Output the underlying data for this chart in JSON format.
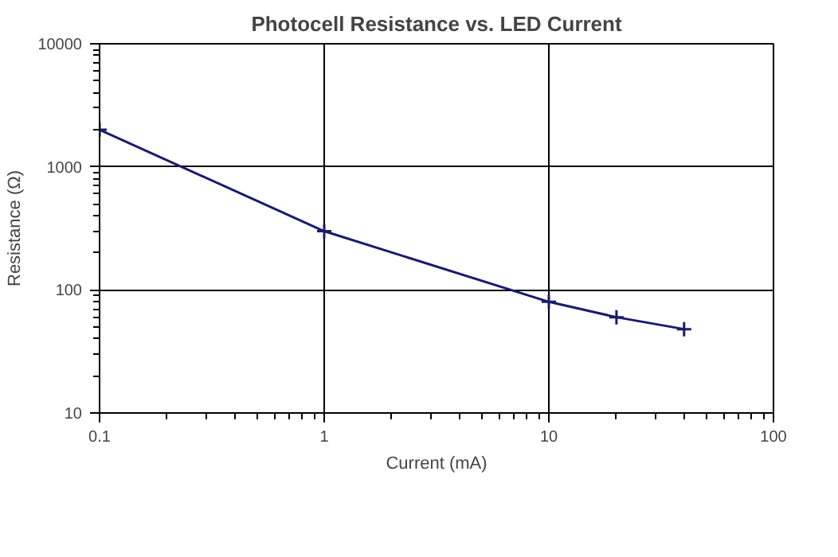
{
  "chart_data": {
    "type": "line",
    "title": "Photocell Resistance vs. LED Current",
    "xlabel": "Current (mA)",
    "ylabel": "Resistance (Ω)",
    "log": "xy",
    "x": [
      0.1,
      1,
      10,
      20,
      40
    ],
    "series": [
      {
        "color": "#1a1a6e",
        "values": [
          2000,
          300,
          80,
          60,
          48
        ]
      }
    ],
    "xlim": [
      0.1,
      100
    ],
    "ylim": [
      10,
      10000
    ],
    "xticks": [
      0.1,
      1,
      10,
      100
    ],
    "yticks": [
      10,
      100,
      1000,
      10000
    ],
    "grid": true,
    "marker": "cross",
    "line_style": "solid"
  }
}
